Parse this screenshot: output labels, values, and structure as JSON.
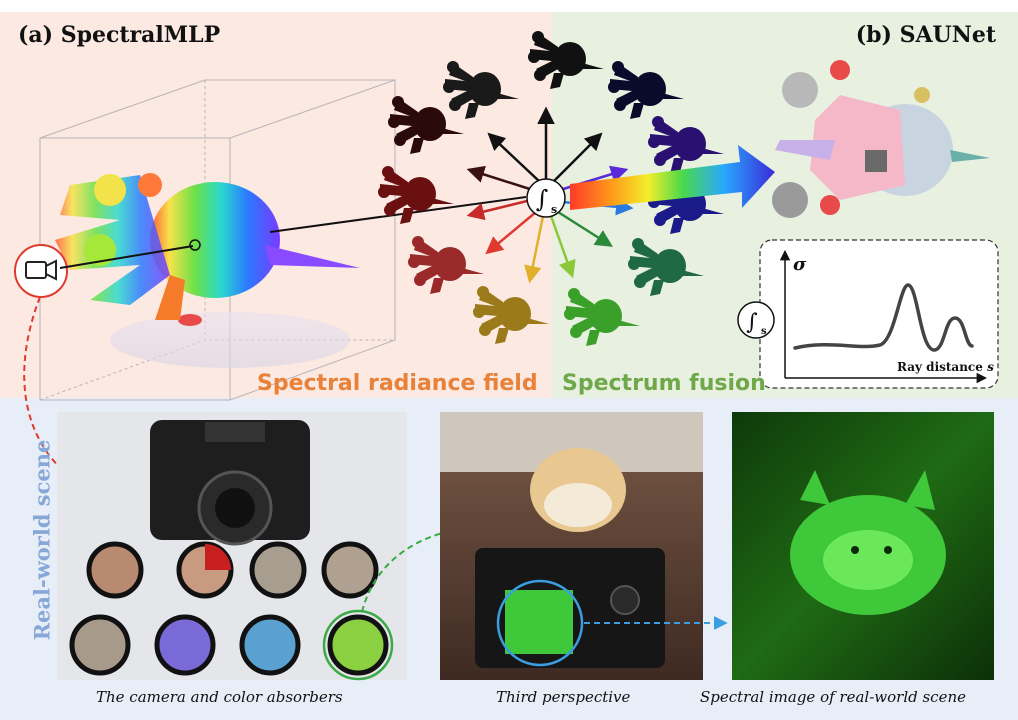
{
  "panel_a": {
    "title": "(a) SpectralMLP",
    "field_label": "Spectral radiance field",
    "field_color": "#e8823a"
  },
  "panel_b": {
    "title": "(b) SAUNet",
    "fusion_label": "Spectrum fusion",
    "fusion_color": "#6fa84a"
  },
  "integral": {
    "symbol": "∫",
    "subscript": "s"
  },
  "density_plot": {
    "y_label": "σ",
    "x_label": "Ray distance",
    "x_var": "s"
  },
  "real_world": {
    "side_label": "Real-world scene",
    "side_color": "#86a8d8",
    "captions": [
      "The camera and color absorbers",
      "Third perspective",
      "Spectral image of real-world scene"
    ]
  },
  "colors": {
    "panel_a_bg": "#fbe9e2",
    "panel_b_bg": "#e8f0e0",
    "bottom_bg": "#e8eef7",
    "highlight_red": "#e03a2f",
    "highlight_green": "#3aaa45",
    "highlight_blue": "#3a9ee0"
  }
}
